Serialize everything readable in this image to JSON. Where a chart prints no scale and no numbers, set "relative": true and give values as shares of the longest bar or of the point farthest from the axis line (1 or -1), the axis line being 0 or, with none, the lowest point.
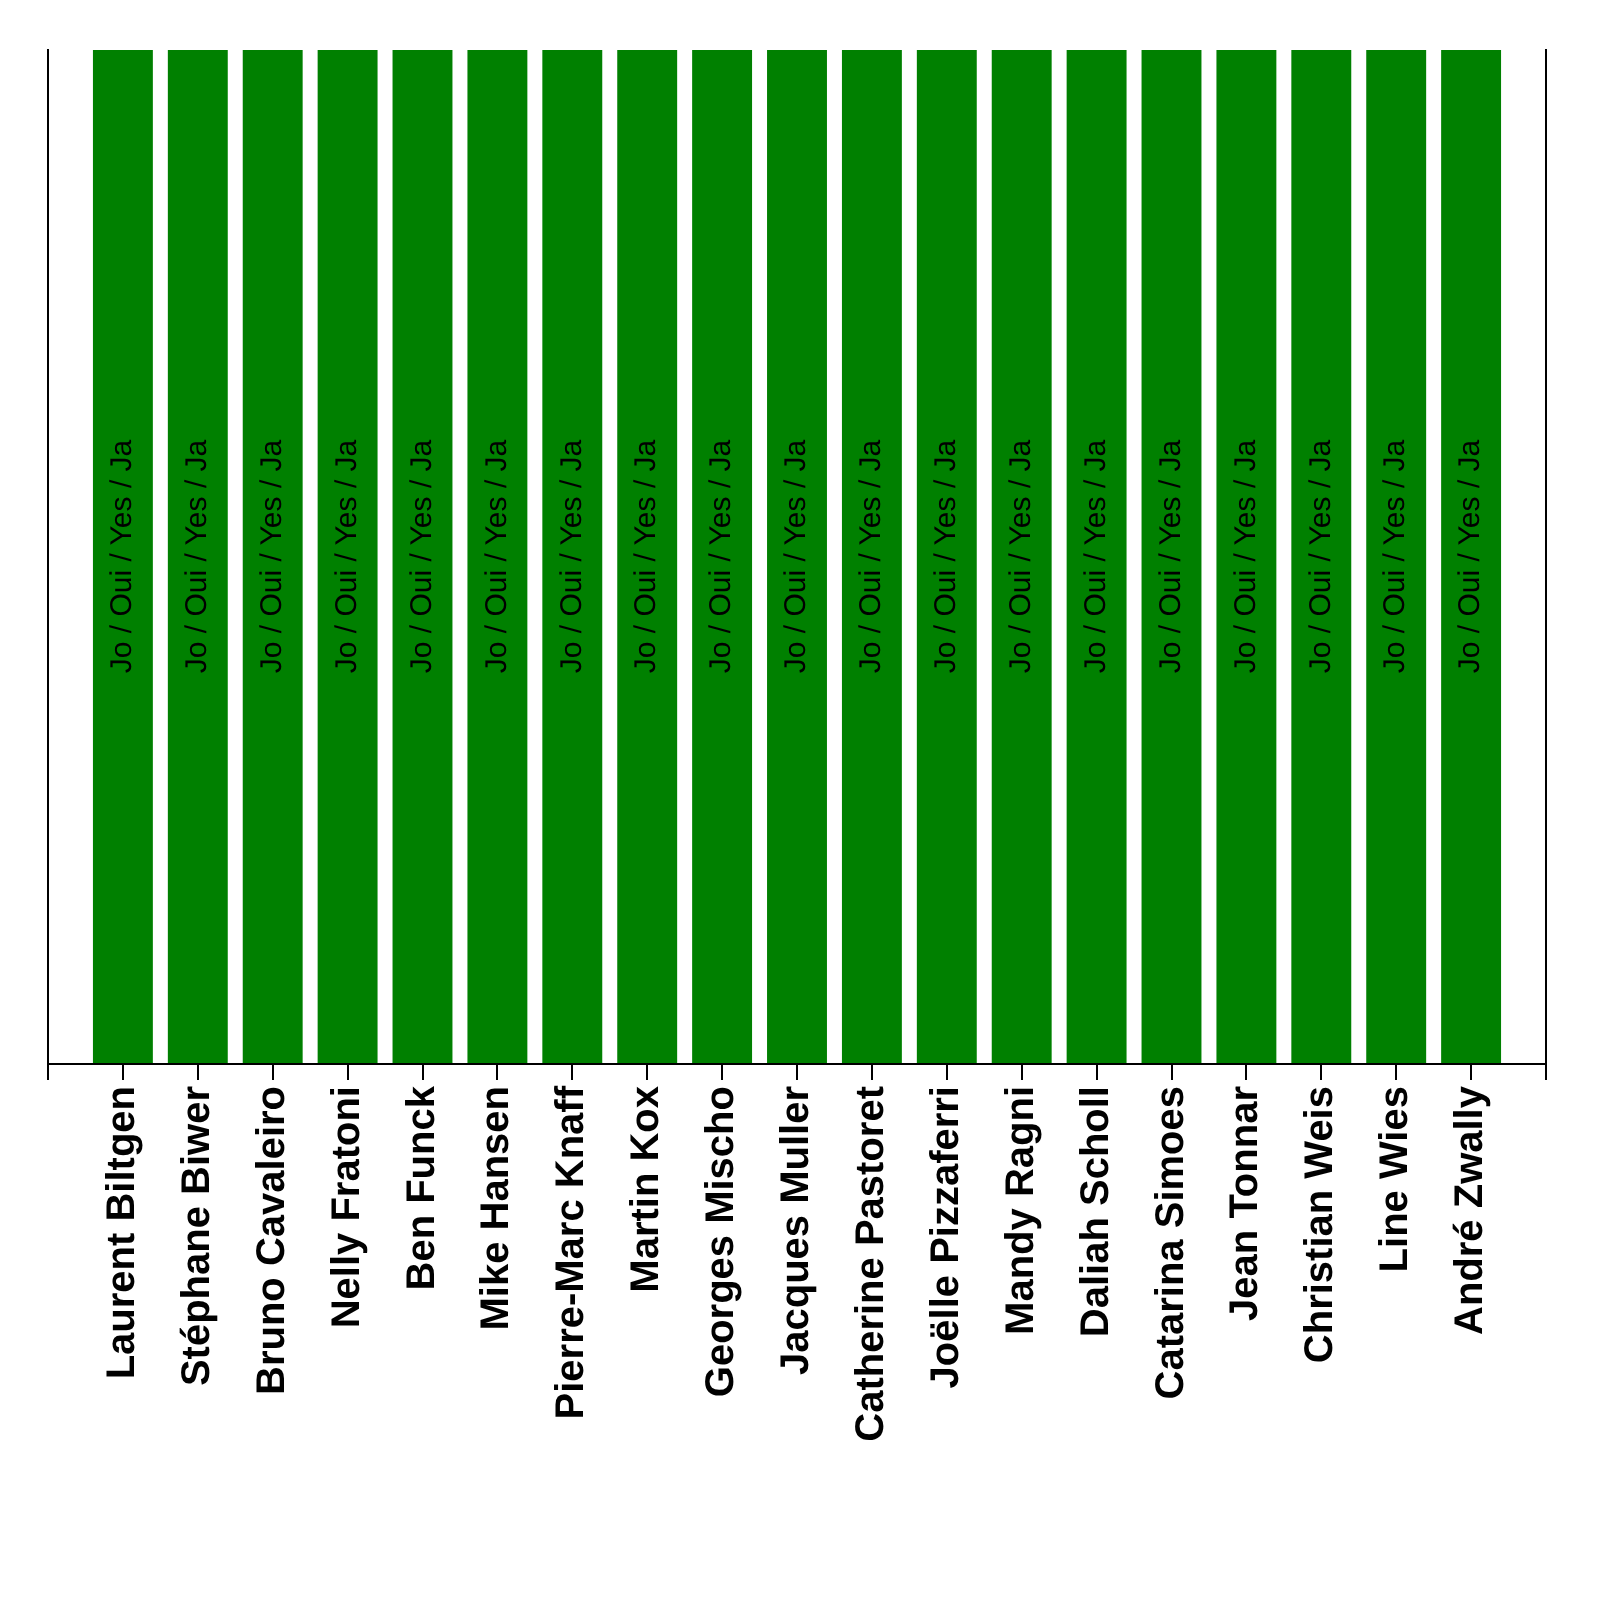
{
  "chart_data": {
    "type": "bar",
    "relative": true,
    "categories": [
      "Laurent Biltgen",
      "Stéphane Biwer",
      "Bruno Cavaleiro",
      "Nelly Fratoni",
      "Ben Funck",
      "Mike Hansen",
      "Pierre-Marc Knaff",
      "Martin Kox",
      "Georges Mischo",
      "Jacques Muller",
      "Catherine Pastoret",
      "Joëlle Pizzaferri",
      "Mandy Ragni",
      "Daliah Scholl",
      "Catarina Simoes",
      "Jean Tonnar",
      "Christian Weis",
      "Line Wies",
      "André Zwally"
    ],
    "values": [
      1,
      1,
      1,
      1,
      1,
      1,
      1,
      1,
      1,
      1,
      1,
      1,
      1,
      1,
      1,
      1,
      1,
      1,
      1
    ],
    "color": "#008000",
    "annotations": [
      "Jo / Oui / Yes / Ja",
      "Jo / Oui / Yes / Ja",
      "Jo / Oui / Yes / Ja",
      "Jo / Oui / Yes / Ja",
      "Jo / Oui / Yes / Ja",
      "Jo / Oui / Yes / Ja",
      "Jo / Oui / Yes / Ja",
      "Jo / Oui / Yes / Ja",
      "Jo / Oui / Yes / Ja",
      "Jo / Oui / Yes / Ja",
      "Jo / Oui / Yes / Ja",
      "Jo / Oui / Yes / Ja",
      "Jo / Oui / Yes / Ja",
      "Jo / Oui / Yes / Ja",
      "Jo / Oui / Yes / Ja",
      "Jo / Oui / Yes / Ja",
      "Jo / Oui / Yes / Ja",
      "Jo / Oui / Yes / Ja",
      "Jo / Oui / Yes / Ja"
    ]
  }
}
